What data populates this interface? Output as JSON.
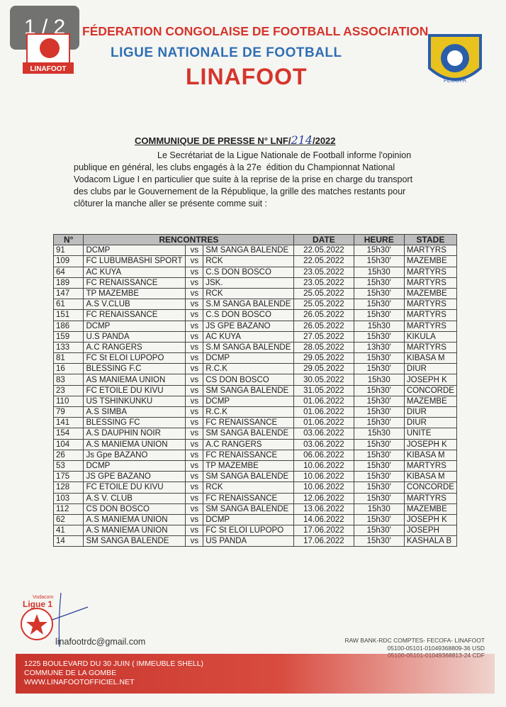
{
  "badge": "1 / 2",
  "header": {
    "federation": "FÉDERATION CONGOLAISE DE FOOTBALL ASSOCIATION",
    "league": "LIGUE NATIONALE DE FOOTBALL",
    "name": "LINAFOOT",
    "left_logo_text": "LINAFOOT",
    "right_logo_text": "FECOFA"
  },
  "communique": {
    "title": "COMMUNIQUE DE PRESSE N° LNF/",
    "number": "214",
    "year": "/2022",
    "lines": [
      "Le Secrétariat de la Ligue Nationale de Football informe l'opinion",
      "publique en général, les clubs engagés à la 27e  édition du Championnat National",
      "Vodacom Ligue I en particulier que suite à la reprise de la prise en charge du transport",
      "des clubs par le Gouvernement de la République, la grille des matches restants pour",
      "clôturer la manche aller se présente comme suit :"
    ]
  },
  "table": {
    "headers": [
      "N°",
      "RENCONTRES",
      "DATE",
      "HEURE",
      "STADE"
    ],
    "rows": [
      [
        "91",
        "DCMP",
        "vs",
        "SM SANGA BALENDE",
        "22.05.2022",
        "15h30'",
        "MARTYRS"
      ],
      [
        "109",
        "FC LUBUMBASHI SPORT",
        "vs",
        "RCK",
        "22.05.2022",
        "15h30'",
        "MAZEMBE"
      ],
      [
        "64",
        "AC KUYA",
        "vs",
        "C.S DON BOSCO",
        "23.05.2022",
        "15h30",
        "MARTYRS"
      ],
      [
        "189",
        "FC RENAISSANCE",
        "vs",
        "JSK.",
        "23.05.2022",
        "15h30'",
        "MARTYRS"
      ],
      [
        "147",
        "TP MAZEMBE",
        "vs",
        "RCK",
        "25.05.2022",
        "15h30'",
        "MAZEMBE"
      ],
      [
        "61",
        "A.S V.CLUB",
        "vs",
        "S.M SANGA BALENDE",
        "25.05.2022",
        "15h30'",
        "MARTYRS"
      ],
      [
        "151",
        "FC RENAISSANCE",
        "vs",
        "C.S DON BOSCO",
        "26.05.2022",
        "15h30'",
        "MARTYRS"
      ],
      [
        "186",
        "DCMP",
        "vs",
        "JS GPE BAZANO",
        "26.05.2022",
        "15h30",
        "MARTYRS"
      ],
      [
        "159",
        "U.S PANDA",
        "vs",
        "AC KUYA",
        "27.05.2022",
        "15h30'",
        "KIKULA"
      ],
      [
        "133",
        "A.C RANGERS",
        "vs",
        "S.M SANGA BALENDE",
        "28.05.2022",
        "13h30'",
        "MARTYRS"
      ],
      [
        "81",
        "FC St ELOI LUPOPO",
        "vs",
        "DCMP",
        "29.05.2022",
        "15h30'",
        "KIBASA M"
      ],
      [
        "16",
        "BLESSING F.C",
        "vs",
        "R.C.K",
        "29.05.2022",
        "15h30'",
        "DIUR"
      ],
      [
        "83",
        "AS MANIEMA UNION",
        "vs",
        "CS DON BOSCO",
        "30.05.2022",
        "15h30",
        "JOSEPH K"
      ],
      [
        "23",
        "FC ETOILE DU KIVU",
        "vs",
        "SM SANGA BALENDE",
        "31.05.2022",
        "15h30'",
        "CONCORDE"
      ],
      [
        "110",
        "US TSHINKUNKU",
        "vs",
        "DCMP",
        "01.06.2022",
        "15h30'",
        "MAZEMBE"
      ],
      [
        "79",
        "A.S SIMBA",
        "vs",
        "R.C.K",
        "01.06.2022",
        "15h30'",
        "DIUR"
      ],
      [
        "141",
        "BLESSING FC",
        "vs",
        "FC RENAISSANCE",
        "01.06.2022",
        "15h30'",
        "DIUR"
      ],
      [
        "154",
        "A.S DAUPHIN NOIR",
        "vs",
        "SM SANGA BALENDE",
        "03.06.2022",
        "15h30",
        "UNITE"
      ],
      [
        "104",
        "A.S MANIEMA UNION",
        "vs",
        "A.C RANGERS",
        "03.06.2022",
        "15h30'",
        "JOSEPH K"
      ],
      [
        "26",
        "Js Gpe BAZANO",
        "vs",
        "FC RENAISSANCE",
        "06.06.2022",
        "15h30'",
        "KIBASA M"
      ],
      [
        "53",
        "DCMP",
        "vs",
        "TP MAZEMBE",
        "10.06.2022",
        "15h30'",
        "MARTYRS"
      ],
      [
        "175",
        "JS GPE BAZANO",
        "vs",
        "SM SANGA BALENDE",
        "10.06.2022",
        "15h30'",
        "KIBASA M"
      ],
      [
        "128",
        "FC ETOILE DU KIVU",
        "vs",
        "RCK",
        "10.06.2022",
        "15h30'",
        "CONCORDE"
      ],
      [
        "103",
        "A.S V. CLUB",
        "vs",
        "FC RENAISSANCE",
        "12.06.2022",
        "15h30'",
        "MARTYRS"
      ],
      [
        "112",
        "CS DON BOSCO",
        "vs",
        "SM SANGA BALENDE",
        "13.06.2022",
        "15h30",
        "MAZEMBE"
      ],
      [
        "62",
        "A.S MANIEMA UNION",
        "vs",
        "DCMP",
        "14.06.2022",
        "15h30'",
        "JOSEPH K"
      ],
      [
        "41",
        "A.S MANIEMA UNION",
        "vs",
        "FC St ELOI LUPOPO",
        "17.06.2022",
        "15h30'",
        "JOSEPH"
      ],
      [
        "14",
        "SM SANGA BALENDE",
        "vs",
        "US PANDA",
        "17.06.2022",
        "15h30'",
        "KASHALA B"
      ]
    ]
  },
  "footer": {
    "sponsor": "Vodacom",
    "sponsor_league": "Ligue 1",
    "email": "linafootrdc@gmail.com",
    "bank": [
      "RAW BANK-RDC COMPTES- FECOFA- LINAFOOT",
      "05100-05101-01049368809-36 USD",
      "05100-05101-01049368813-24 CDF"
    ],
    "address": [
      "1225 BOULEVARD DU 30 JUIN ( IMMEUBLE SHELL)",
      "COMMUNE DE LA GOMBE",
      "WWW.LINAFOOTOFFICIEL.NET"
    ]
  }
}
